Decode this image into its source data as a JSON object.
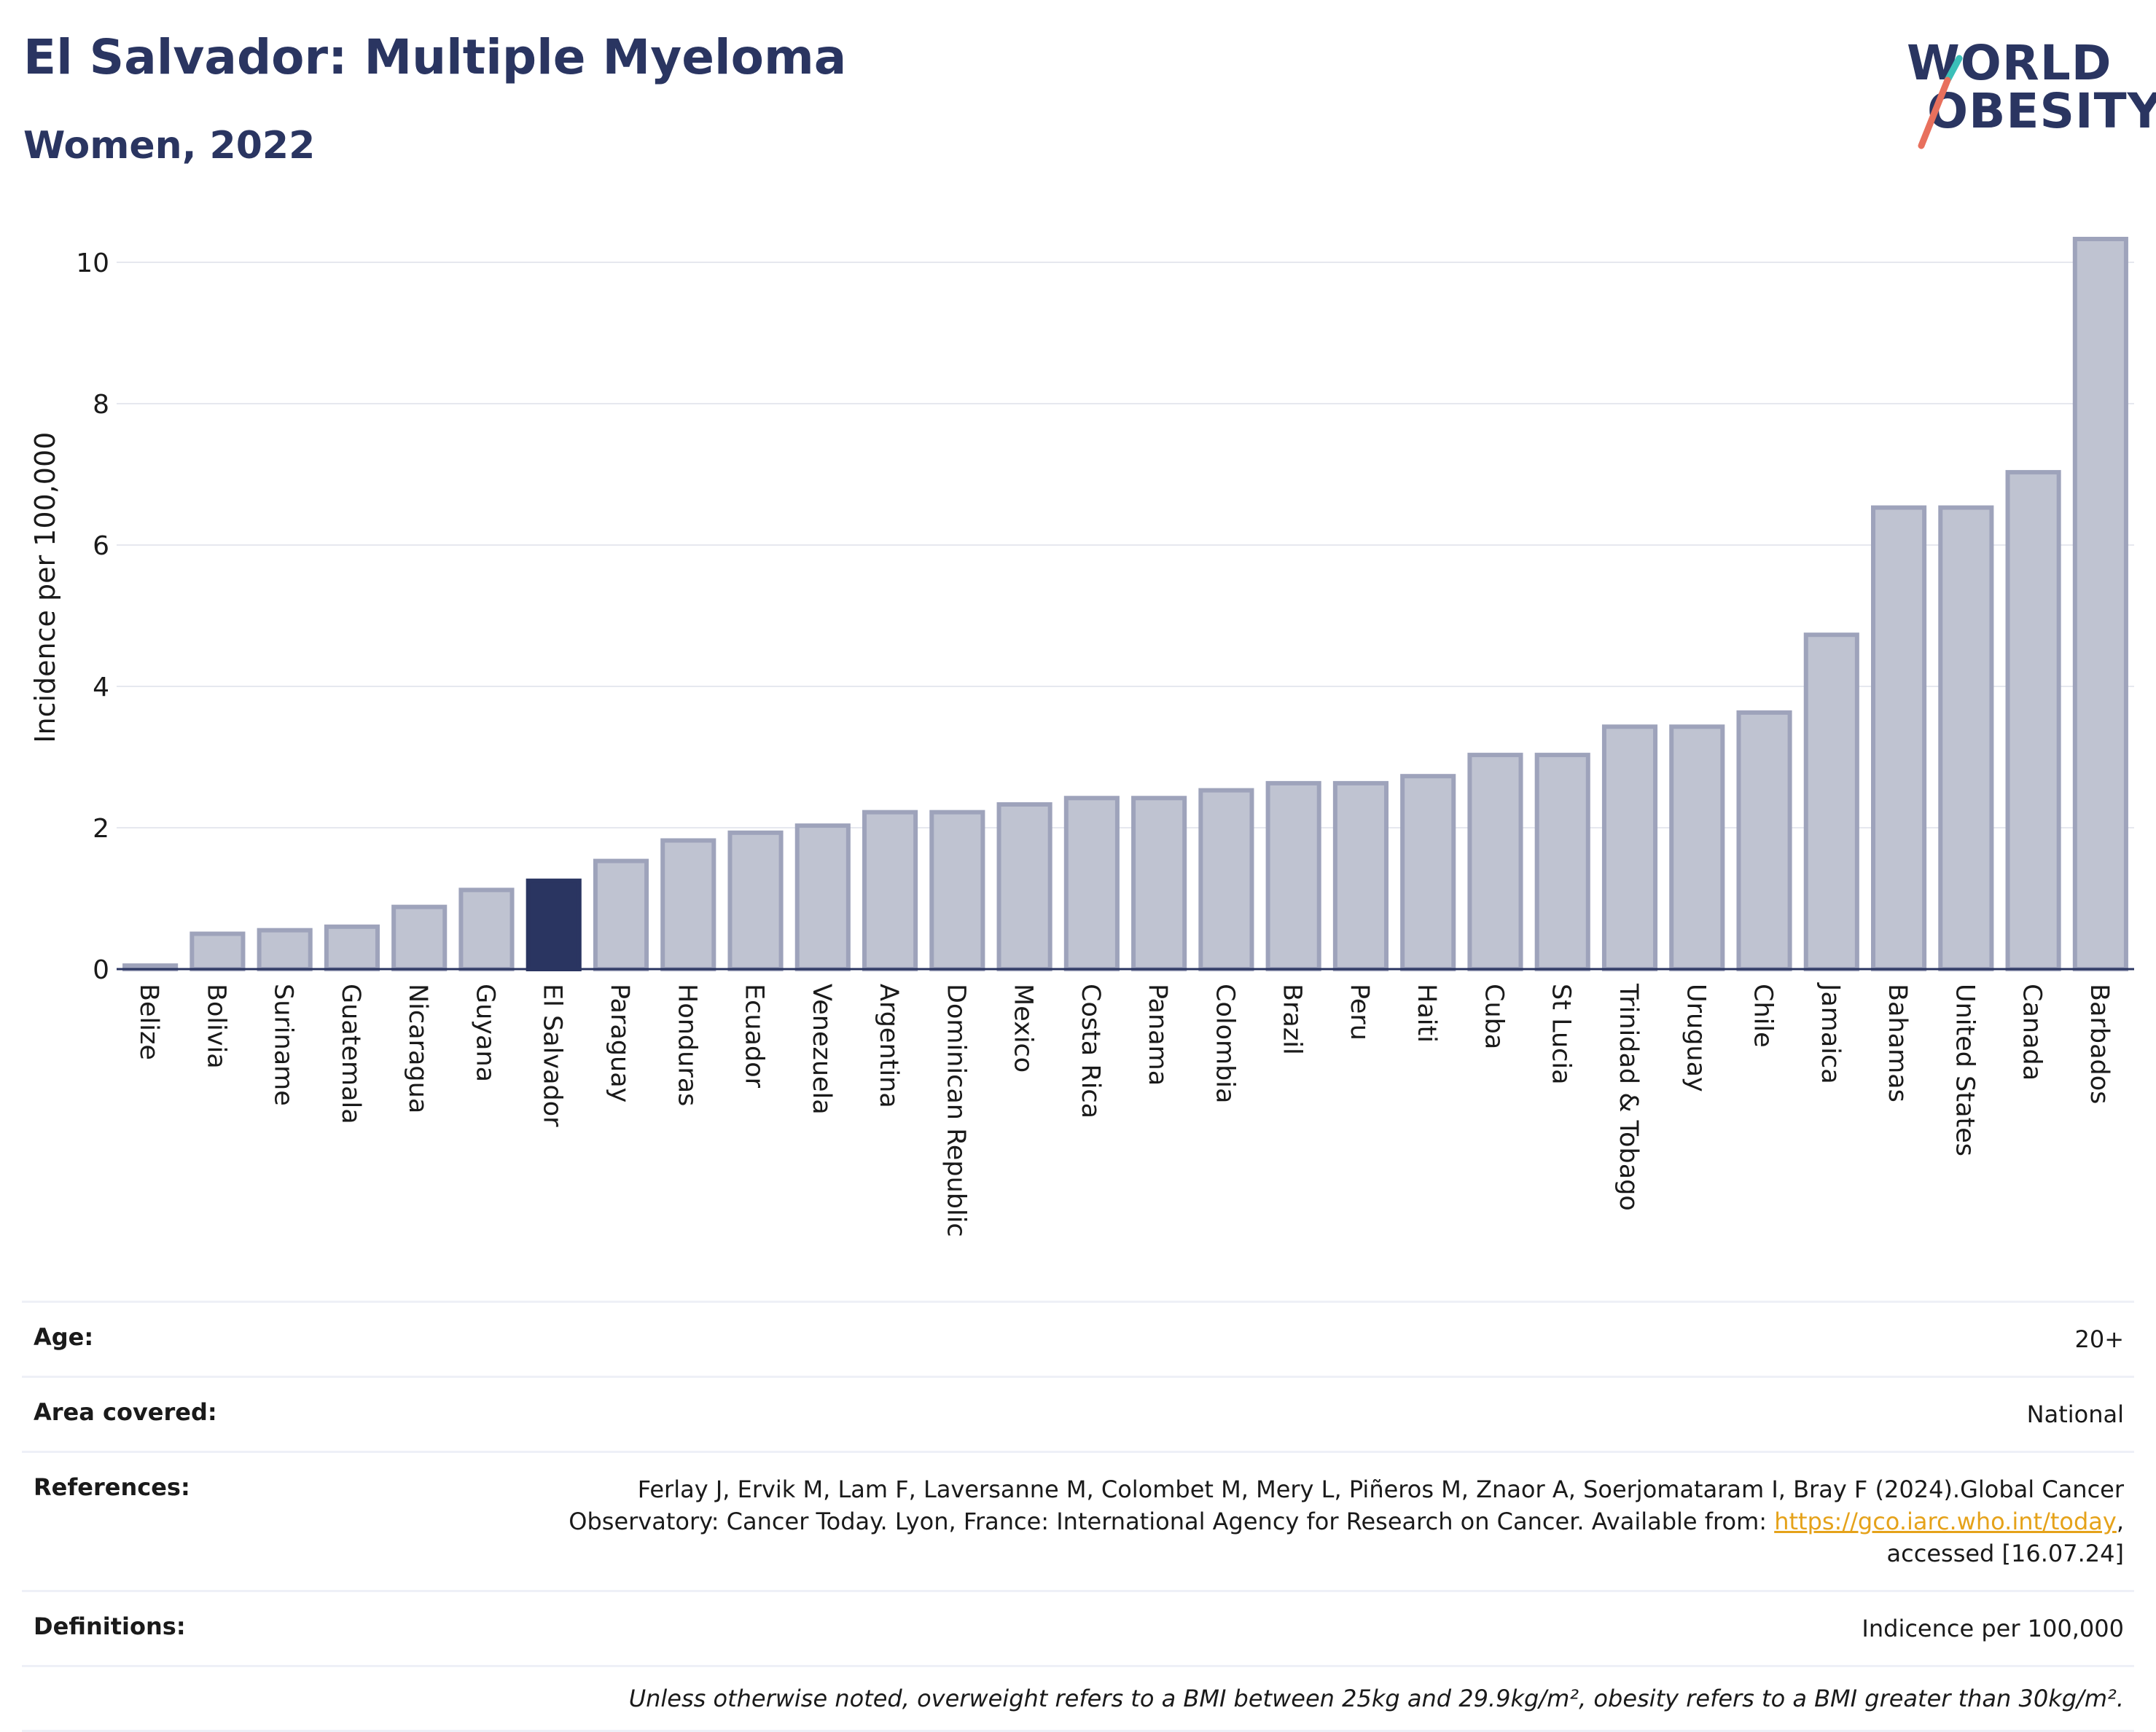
{
  "header": {
    "title": "El Salvador: Multiple Myeloma",
    "subtitle": "Women, 2022"
  },
  "logo": {
    "line1": "WORLD",
    "line2": "OBESITY",
    "alt": "World Obesity logo"
  },
  "colors": {
    "bar": "#bfc3d1",
    "bar_border": "#9ea3bb",
    "highlight": "#2a3561",
    "grid": "#e6e8ef",
    "logo_teal": "#3bbfb8",
    "logo_coral": "#e8705d"
  },
  "chart_data": {
    "type": "bar",
    "ylabel": "Incidence per 100,000",
    "ylim": [
      0,
      10.5
    ],
    "yticks": [
      0,
      2,
      4,
      6,
      8,
      10
    ],
    "grid": true,
    "highlight": "El Salvador",
    "categories": [
      "Belize",
      "Bolivia",
      "Suriname",
      "Guatemala",
      "Nicaragua",
      "Guyana",
      "El Salvador",
      "Paraguay",
      "Honduras",
      "Ecuador",
      "Venezuela",
      "Argentina",
      "Dominican Republic",
      "Mexico",
      "Costa Rica",
      "Panama",
      "Colombia",
      "Brazil",
      "Peru",
      "Haiti",
      "Cuba",
      "St Lucia",
      "Trinidad & Tobago",
      "Uruguay",
      "Chile",
      "Jamaica",
      "Bahamas",
      "United States",
      "Canada",
      "Barbados"
    ],
    "values": [
      0.05,
      0.5,
      0.55,
      0.6,
      0.88,
      1.12,
      1.25,
      1.53,
      1.82,
      1.93,
      2.03,
      2.22,
      2.22,
      2.33,
      2.42,
      2.42,
      2.53,
      2.63,
      2.63,
      2.73,
      3.03,
      3.03,
      3.43,
      3.43,
      3.63,
      4.73,
      6.53,
      6.53,
      7.03,
      10.33
    ]
  },
  "meta": {
    "age_label": "Age:",
    "age_value": "20+",
    "area_label": "Area covered:",
    "area_value": "National",
    "references_label": "References:",
    "references_line1": "Ferlay J, Ervik M, Lam F, Laversanne M, Colombet M, Mery L, Piñeros M, Znaor A, Soerjomataram I, Bray F (2024).Global Cancer",
    "references_line2_pre": "Observatory: Cancer Today. Lyon, France: International Agency for Research on Cancer. Available from: ",
    "references_link": "https://gco.iarc.who.int/today",
    "references_line2_post": ",",
    "references_line3": "accessed [16.07.24]",
    "definitions_label": "Definitions:",
    "definitions_value": "Indicence per 100,000",
    "note": "Unless otherwise noted, overweight refers to a BMI between 25kg and 29.9kg/m², obesity refers to a BMI greater than 30kg/m²."
  }
}
